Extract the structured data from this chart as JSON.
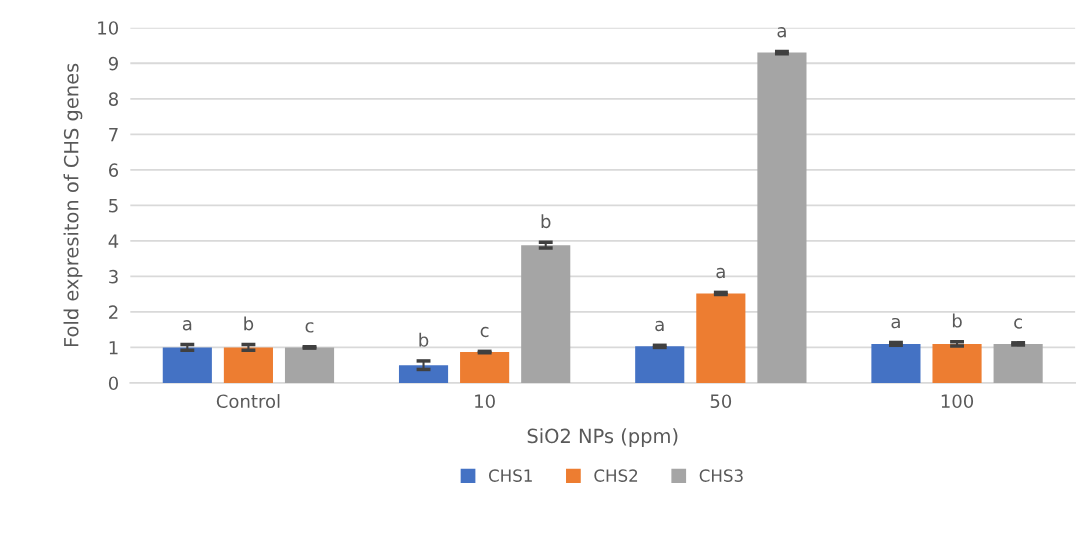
{
  "chart_data": {
    "type": "bar",
    "xlabel": "SiO2 NPs (ppm)",
    "ylabel": "Fold expresiton of CHS genes",
    "categories": [
      "Control",
      "10",
      "50",
      "100"
    ],
    "series": [
      {
        "name": "CHS1",
        "color": "#4472c4",
        "values": [
          1.0,
          0.5,
          1.03,
          1.1
        ],
        "errors": [
          0.08,
          0.12,
          0.03,
          0.04
        ],
        "value_labels": [
          "a",
          "b",
          "a",
          "a"
        ]
      },
      {
        "name": "CHS2",
        "color": "#ed7d31",
        "values": [
          1.0,
          0.87,
          2.52,
          1.1
        ],
        "errors": [
          0.08,
          0.02,
          0.03,
          0.06
        ],
        "value_labels": [
          "b",
          "c",
          "a",
          "b"
        ]
      },
      {
        "name": "CHS3",
        "color": "#a5a5a5",
        "values": [
          1.0,
          3.88,
          9.3,
          1.1
        ],
        "errors": [
          0.02,
          0.08,
          0.03,
          0.03
        ],
        "value_labels": [
          "c",
          "b",
          "a",
          "c"
        ]
      }
    ],
    "ylim": [
      0,
      10
    ],
    "yticks": [
      0,
      1,
      2,
      3,
      4,
      5,
      6,
      7,
      8,
      9,
      10
    ],
    "grid": "y",
    "legend": "bottom"
  }
}
